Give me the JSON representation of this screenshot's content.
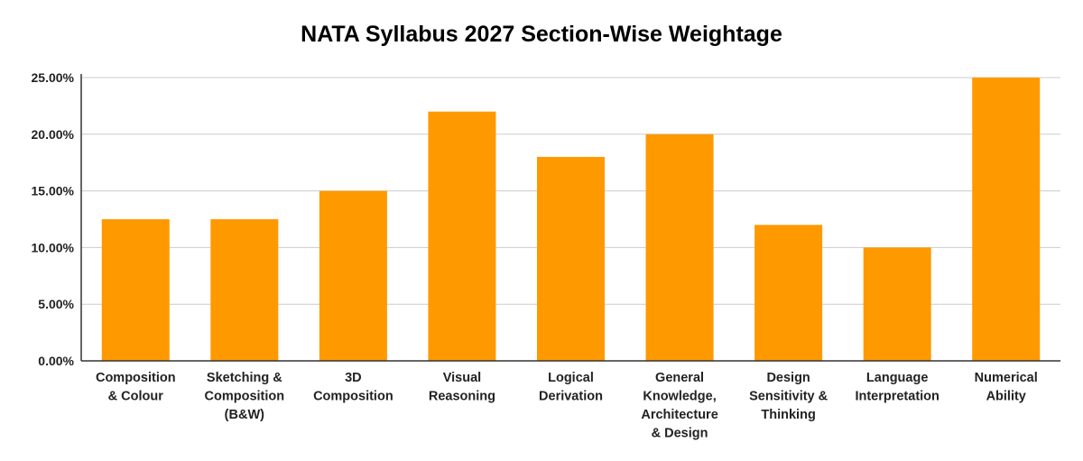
{
  "chart_data": {
    "type": "bar",
    "title": "NATA Syllabus 2027 Section-Wise Weightage",
    "xlabel": "",
    "ylabel": "",
    "categories": [
      "Composition & Colour",
      "Sketching & Composition (B&W)",
      "3D Composition",
      "Visual Reasoning",
      "Logical Derivation",
      "General Knowledge, Architecture & Design",
      "Design Sensitivity & Thinking",
      "Language Interpretation",
      "Numerical Ability"
    ],
    "category_lines": [
      [
        "Composition",
        "& Colour"
      ],
      [
        "Sketching &",
        "Composition",
        "(B&W)"
      ],
      [
        "3D",
        "Composition"
      ],
      [
        "Visual",
        "Reasoning"
      ],
      [
        "Logical",
        "Derivation"
      ],
      [
        "General",
        "Knowledge,",
        "Architecture",
        "& Design"
      ],
      [
        "Design",
        "Sensitivity &",
        "Thinking"
      ],
      [
        "Language",
        "Interpretation"
      ],
      [
        "Numerical",
        "Ability"
      ]
    ],
    "values": [
      12.5,
      12.5,
      15,
      22,
      18,
      20,
      12,
      10,
      25
    ],
    "ylim": [
      0,
      25
    ],
    "yticks": [
      0,
      5,
      10,
      15,
      20,
      25
    ],
    "ytick_labels": [
      "0.00%",
      "5.00%",
      "10.00%",
      "15.00%",
      "20.00%",
      "25.00%"
    ],
    "grid": true,
    "legend": "none",
    "colors": {
      "bar": "#FF9900",
      "grid": "#CCCCCC",
      "axis": "#333333"
    }
  }
}
